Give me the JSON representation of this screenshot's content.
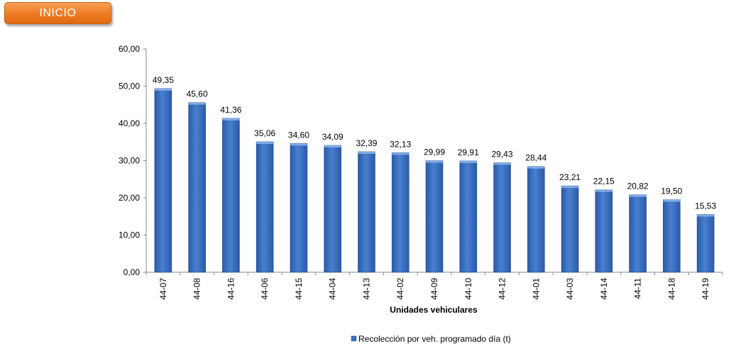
{
  "nav": {
    "inicio_label": "INICIO"
  },
  "colors": {
    "bar": "#3a6fc0",
    "bar_dark": "#1f4f96",
    "button": "#ee7a21"
  },
  "chart_data": {
    "type": "bar",
    "xlabel": "Unidades vehiculares",
    "ylabel": "",
    "ylim": [
      0,
      60
    ],
    "yticks": [
      "0,00",
      "10,00",
      "20,00",
      "30,00",
      "40,00",
      "50,00",
      "60,00"
    ],
    "grid": false,
    "legend_position": "bottom",
    "categories": [
      "44-07",
      "44-08",
      "44-16",
      "44-06",
      "44-15",
      "44-04",
      "44-13",
      "44-02",
      "44-09",
      "44-10",
      "44-12",
      "44-01",
      "44-03",
      "44-14",
      "44-11",
      "44-18",
      "44-19"
    ],
    "series": [
      {
        "name": "Recolección por veh. programado día (t)",
        "values": [
          49.35,
          45.6,
          41.36,
          35.06,
          34.6,
          34.09,
          32.39,
          32.13,
          29.99,
          29.91,
          29.43,
          28.44,
          23.21,
          22.15,
          20.82,
          19.5,
          15.53
        ],
        "labels": [
          "49,35",
          "45,60",
          "41,36",
          "35,06",
          "34,60",
          "34,09",
          "32,39",
          "32,13",
          "29,99",
          "29,91",
          "29,43",
          "28,44",
          "23,21",
          "22,15",
          "20,82",
          "19,50",
          "15,53"
        ]
      }
    ]
  }
}
